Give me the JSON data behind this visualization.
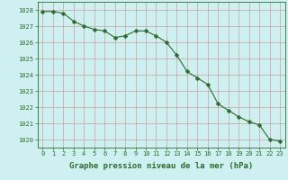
{
  "x": [
    0,
    1,
    2,
    3,
    4,
    5,
    6,
    7,
    8,
    9,
    10,
    11,
    12,
    13,
    14,
    15,
    16,
    17,
    18,
    19,
    20,
    21,
    22,
    23
  ],
  "y": [
    1027.9,
    1027.9,
    1027.8,
    1027.3,
    1027.0,
    1026.8,
    1026.7,
    1026.3,
    1026.4,
    1026.7,
    1026.7,
    1026.4,
    1026.0,
    1025.2,
    1024.2,
    1023.8,
    1023.4,
    1022.2,
    1021.8,
    1021.4,
    1021.1,
    1020.9,
    1020.0,
    1019.9
  ],
  "line_color": "#2d6a2d",
  "marker": "D",
  "marker_size": 2.5,
  "bg_color": "#cff0f0",
  "grid_color": "#c8a0a0",
  "ylim": [
    1019.5,
    1028.5
  ],
  "yticks": [
    1020,
    1021,
    1022,
    1023,
    1024,
    1025,
    1026,
    1027,
    1028
  ],
  "xlim": [
    -0.5,
    23.5
  ],
  "xticks": [
    0,
    1,
    2,
    3,
    4,
    5,
    6,
    7,
    8,
    9,
    10,
    11,
    12,
    13,
    14,
    15,
    16,
    17,
    18,
    19,
    20,
    21,
    22,
    23
  ],
  "xlabel": "Graphe pression niveau de la mer (hPa)",
  "xlabel_color": "#2d6a2d",
  "tick_color": "#2d6a2d",
  "axis_color": "#2d6a2d",
  "tick_fontsize": 5.0,
  "xlabel_fontsize": 6.5
}
